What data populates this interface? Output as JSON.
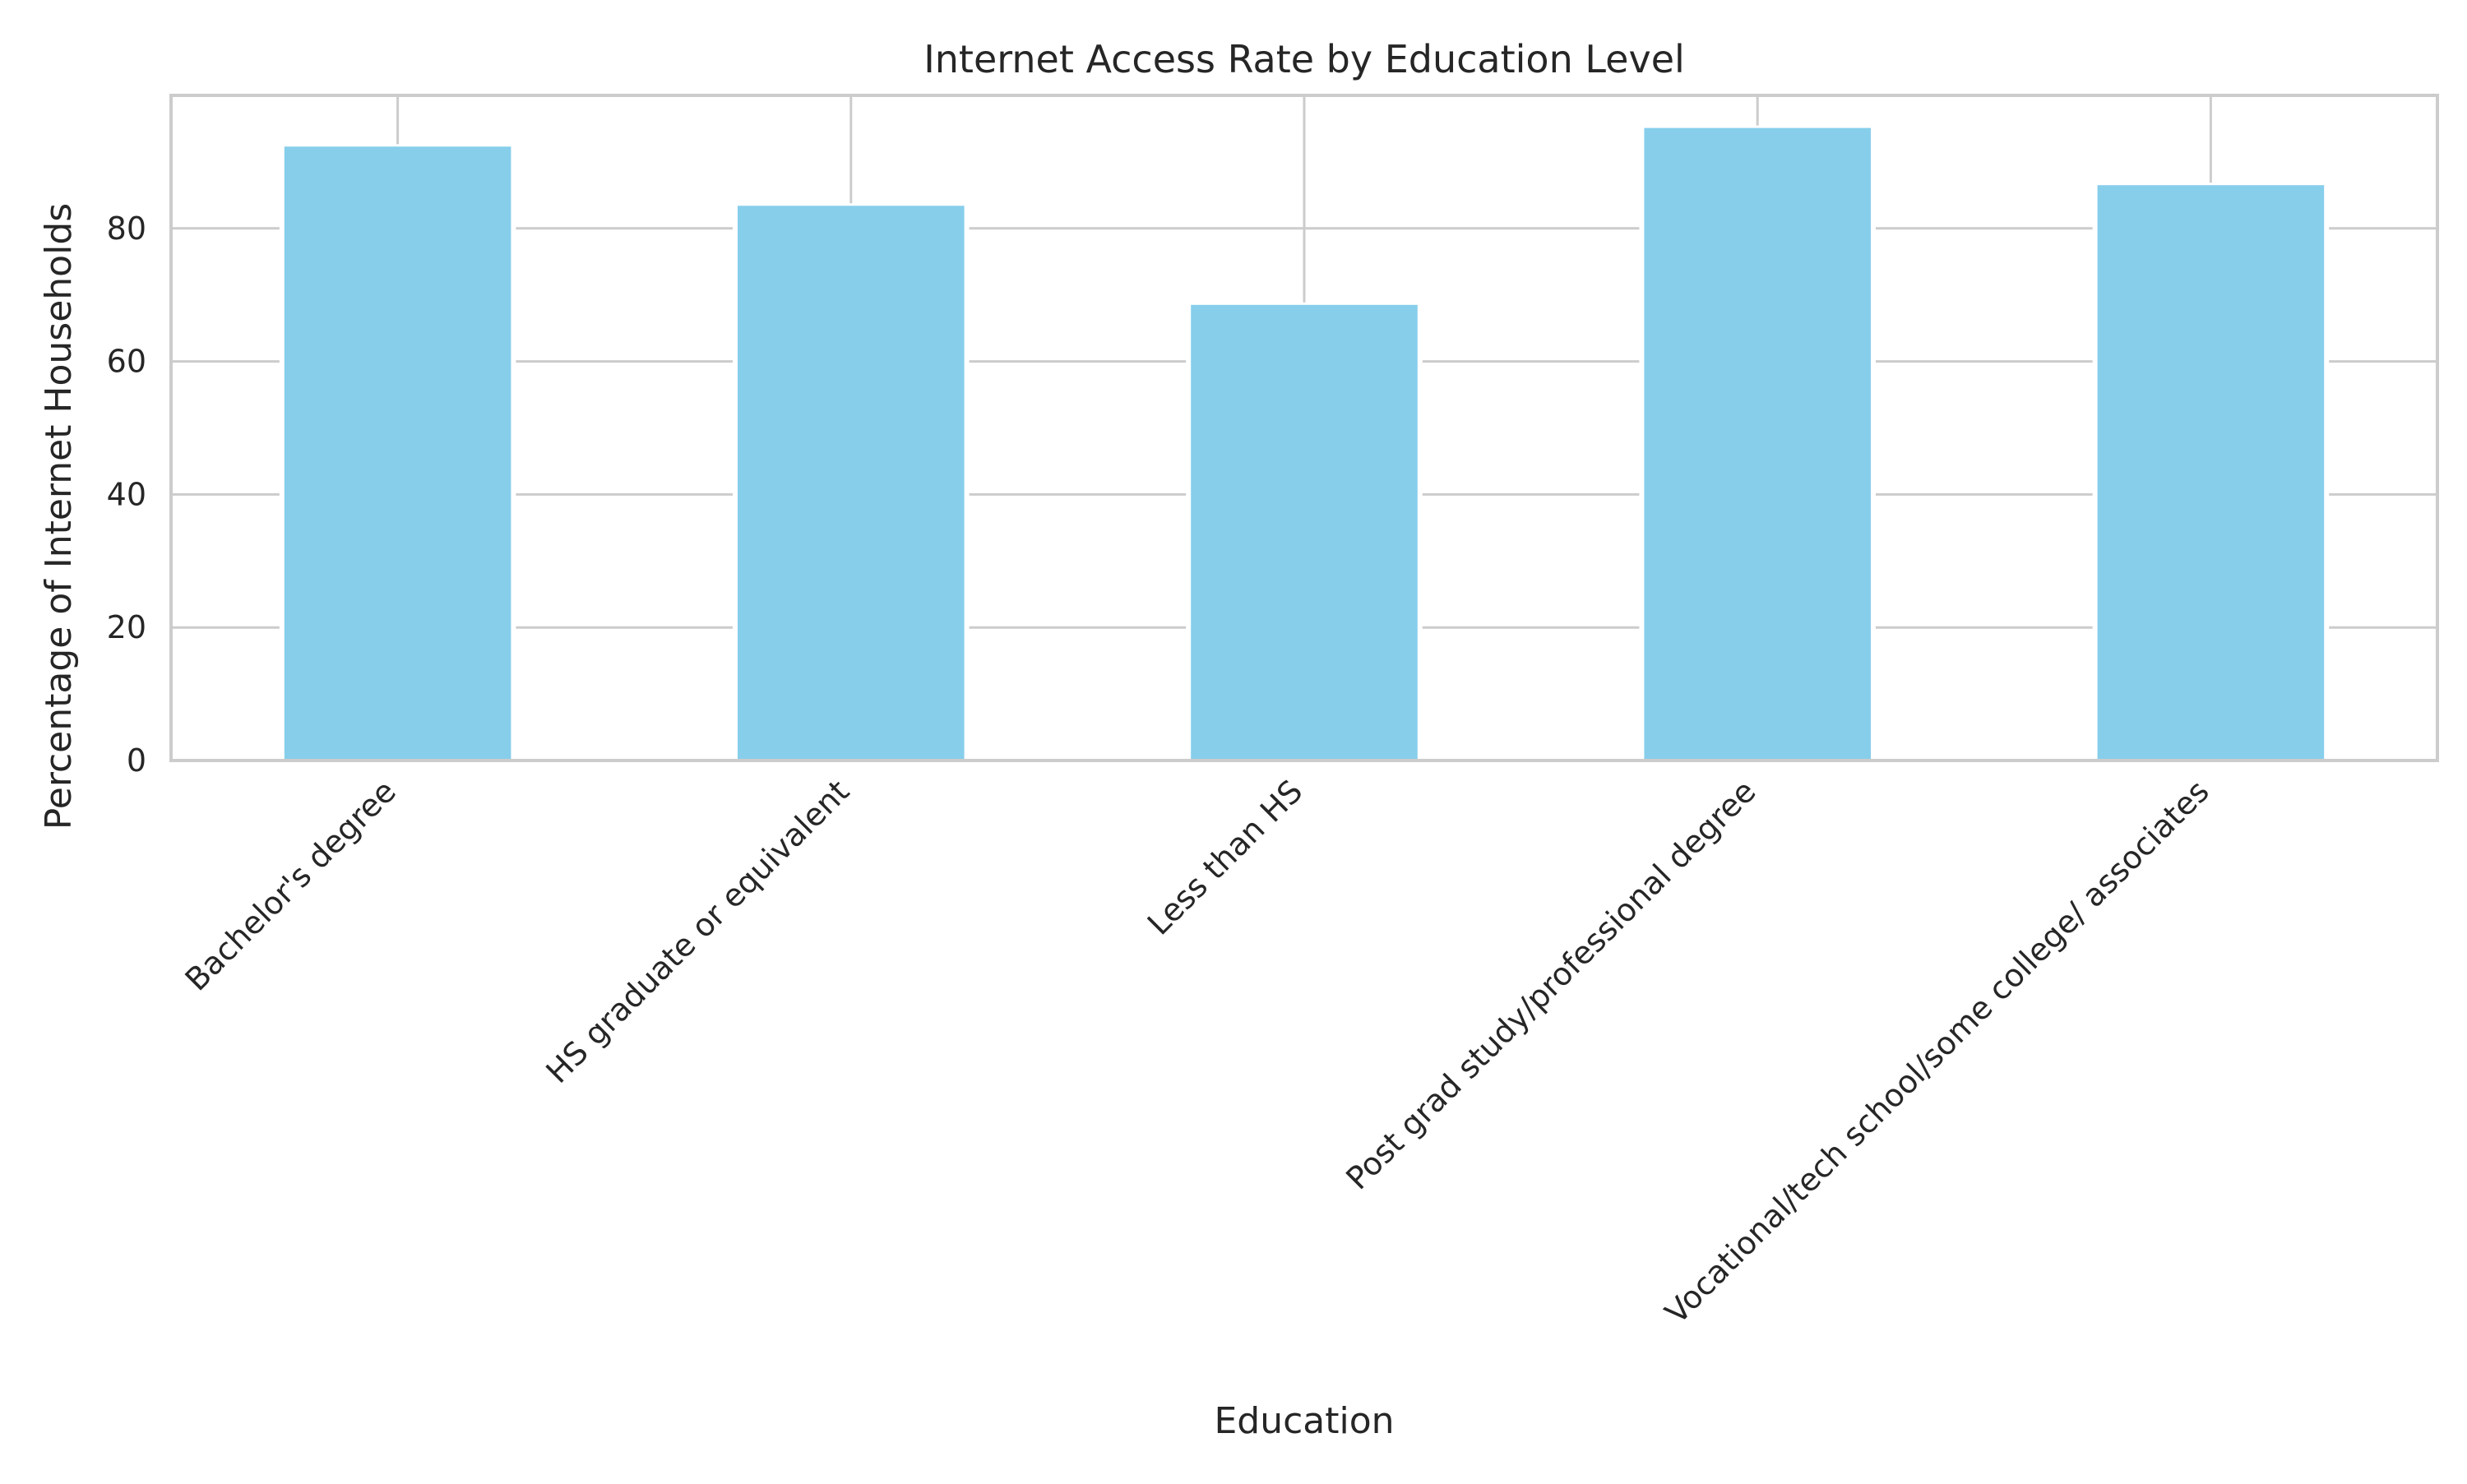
{
  "chart_data": {
    "type": "bar",
    "title": "Internet Access Rate by Education Level",
    "xlabel": "Education",
    "ylabel": "Percentage of Internet Households",
    "categories": [
      "Bachelor's degree",
      "HS graduate or equivalent",
      "Less than HS",
      "Post grad study/professional degree",
      "Vocational/tech school/some college/ associates"
    ],
    "values": [
      92.3,
      83.4,
      68.5,
      95.1,
      86.5
    ],
    "ylim": [
      0,
      100
    ],
    "yticks": [
      0,
      20,
      40,
      60,
      80
    ],
    "grid": true,
    "bar_color": "#87CEEB",
    "grid_color": "#cccccc",
    "spine_color": "#cccccc"
  }
}
